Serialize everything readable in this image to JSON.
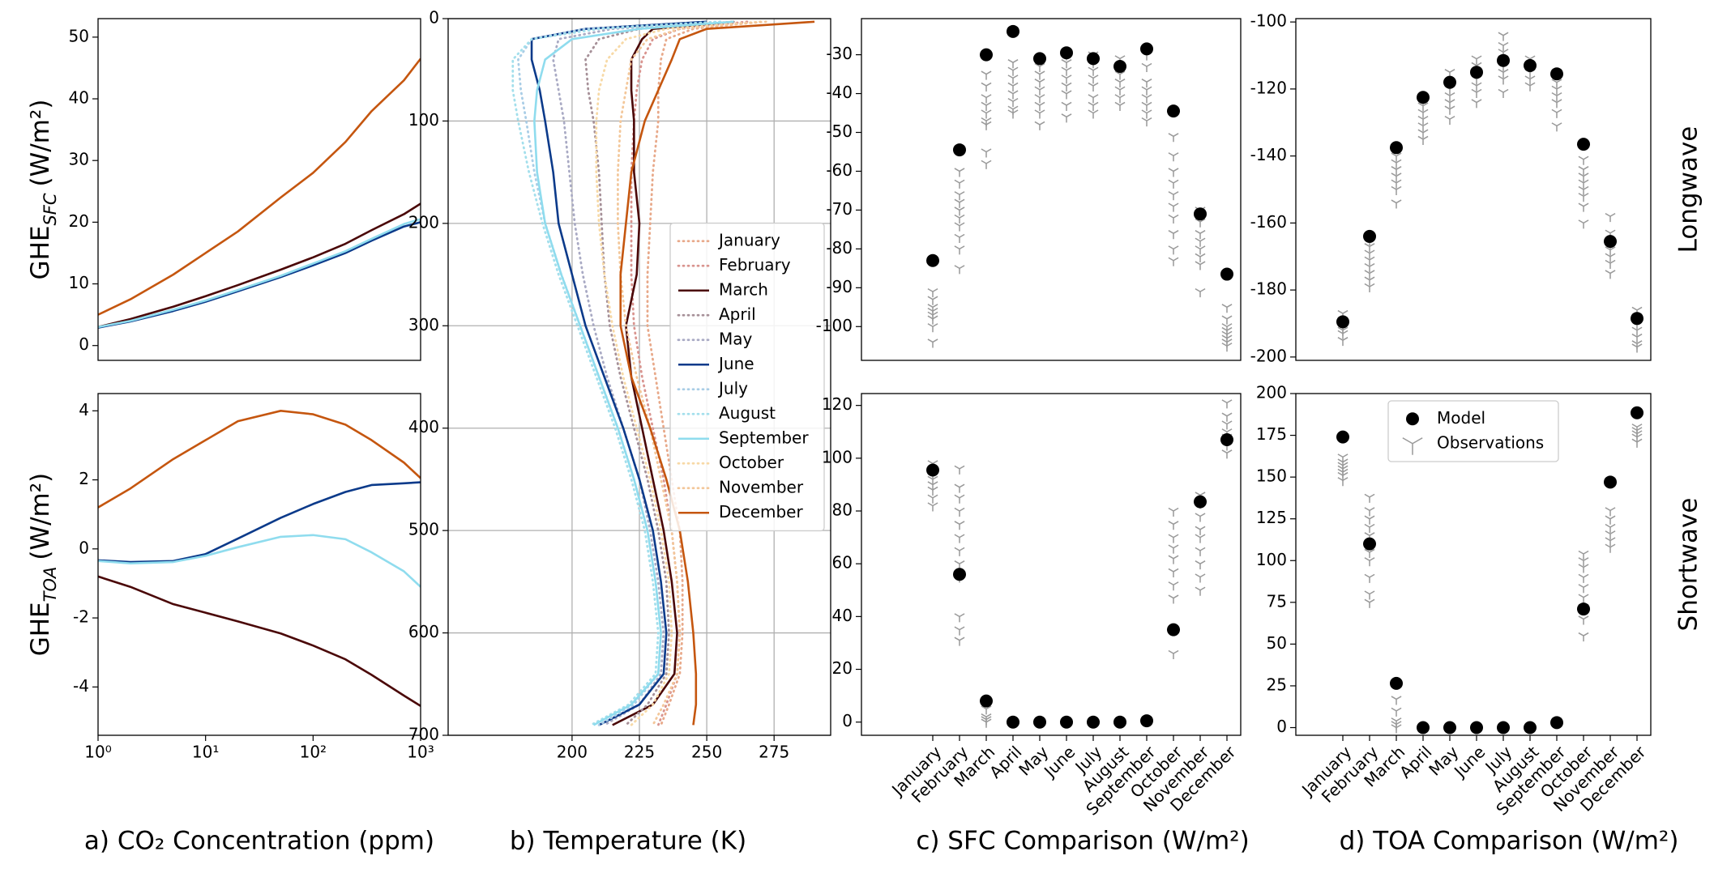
{
  "chart_data": [
    {
      "type": "line",
      "xlim": [
        1,
        1000
      ],
      "xlog": true,
      "ylim": [
        -2.4,
        53
      ],
      "yticks": [
        0,
        10,
        20,
        30,
        40,
        50
      ],
      "ylabel": {
        "text": "GHE",
        "sub": "SFC",
        "unit": "(W/m²)"
      },
      "x": [
        1,
        2,
        5,
        10,
        20,
        50,
        100,
        200,
        350,
        700,
        1000
      ],
      "series": [
        {
          "color": "#c5560f",
          "values": [
            5,
            7.5,
            11.5,
            15,
            18.5,
            24,
            28,
            33,
            38,
            43,
            46.5
          ]
        },
        {
          "color": "#4a0707",
          "values": [
            3,
            4.3,
            6.3,
            8,
            9.8,
            12.3,
            14.3,
            16.5,
            18.7,
            21.3,
            23
          ]
        },
        {
          "color": "#0b3a8a",
          "values": [
            2.9,
            3.9,
            5.6,
            7.1,
            8.8,
            11.1,
            13,
            15,
            17,
            19.3,
            20
          ]
        },
        {
          "color": "#8fdcee",
          "values": [
            3,
            4,
            5.8,
            7.3,
            9,
            11.3,
            13.3,
            15.3,
            17.3,
            19.7,
            20.5
          ]
        }
      ]
    },
    {
      "type": "line",
      "xlim": [
        1,
        1000
      ],
      "xlog": true,
      "ylim": [
        -5.4,
        4.5
      ],
      "yticks": [
        -4,
        -2,
        0,
        2,
        4
      ],
      "xticks": [
        {
          "value": 1,
          "label": "10⁰"
        },
        {
          "value": 10,
          "label": "10¹"
        },
        {
          "value": 100,
          "label": "10²"
        },
        {
          "value": 1000,
          "label": "10³"
        }
      ],
      "xlabel": "a) CO₂ Concentration (ppm)",
      "ylabel": {
        "text": "GHE",
        "sub": "TOA",
        "unit": "(W/m²)"
      },
      "x": [
        1,
        2,
        5,
        10,
        20,
        50,
        100,
        200,
        350,
        700,
        1000
      ],
      "series": [
        {
          "color": "#c5560f",
          "values": [
            1.2,
            1.75,
            2.6,
            3.15,
            3.7,
            4.0,
            3.9,
            3.6,
            3.15,
            2.5,
            2.05
          ]
        },
        {
          "color": "#4a0707",
          "values": [
            -0.8,
            -1.1,
            -1.6,
            -1.85,
            -2.1,
            -2.45,
            -2.8,
            -3.2,
            -3.65,
            -4.25,
            -4.55
          ]
        },
        {
          "color": "#0b3a8a",
          "values": [
            -0.33,
            -0.38,
            -0.35,
            -0.15,
            0.3,
            0.9,
            1.3,
            1.65,
            1.85,
            1.9,
            1.93
          ]
        },
        {
          "color": "#8fdcee",
          "values": [
            -0.35,
            -0.42,
            -0.38,
            -0.2,
            0.05,
            0.35,
            0.4,
            0.28,
            -0.1,
            -0.65,
            -1.1
          ]
        }
      ]
    },
    {
      "type": "line",
      "xlim": [
        154,
        296
      ],
      "ylim": [
        700,
        0
      ],
      "xticks": [
        200,
        225,
        250,
        275
      ],
      "yticks": [
        0,
        100,
        200,
        300,
        400,
        500,
        600,
        700
      ],
      "grid": true,
      "legend": "center right",
      "xlabel": "b) Temperature (K)",
      "y": [
        3,
        10,
        20,
        40,
        70,
        100,
        150,
        200,
        250,
        300,
        350,
        400,
        450,
        500,
        550,
        600,
        640,
        670,
        690
      ],
      "series": [
        {
          "name": "January",
          "color": "#e8a98a",
          "style": "dotted",
          "x": [
            270,
            245,
            235,
            233,
            232,
            232,
            230,
            229,
            228,
            228,
            231,
            234,
            237,
            240,
            241,
            241,
            240,
            236,
            233
          ]
        },
        {
          "name": "February",
          "color": "#d9948f",
          "style": "dotted",
          "x": [
            265,
            240,
            230,
            226,
            224,
            223,
            222,
            222,
            222,
            223,
            226,
            230,
            234,
            237,
            239,
            240,
            239,
            235,
            232
          ]
        },
        {
          "name": "March",
          "color": "#4a0707",
          "style": "solid",
          "x": [
            260,
            230,
            226,
            222,
            222,
            223,
            223,
            225,
            224,
            220,
            222,
            226,
            230,
            234,
            237,
            239,
            238,
            230,
            215
          ]
        },
        {
          "name": "April",
          "color": "#a69098",
          "style": "dotted",
          "x": [
            260,
            225,
            210,
            205,
            206,
            208,
            210,
            211,
            212,
            214,
            218,
            223,
            228,
            232,
            235,
            236,
            235,
            228,
            220
          ]
        },
        {
          "name": "May",
          "color": "#a9aac4",
          "style": "dotted",
          "x": [
            255,
            215,
            195,
            193,
            195,
            197,
            199,
            201,
            204,
            208,
            213,
            219,
            225,
            229,
            232,
            234,
            233,
            225,
            212
          ]
        },
        {
          "name": "June",
          "color": "#0b3a8a",
          "style": "solid",
          "x": [
            250,
            205,
            185,
            185,
            188,
            190,
            193,
            195,
            200,
            205,
            212,
            219,
            225,
            230,
            233,
            235,
            234,
            225,
            210
          ]
        },
        {
          "name": "July",
          "color": "#a9cde6",
          "style": "dotted",
          "x": [
            255,
            205,
            185,
            180,
            181,
            183,
            186,
            190,
            196,
            203,
            210,
            217,
            223,
            228,
            231,
            233,
            232,
            223,
            210
          ]
        },
        {
          "name": "August",
          "color": "#a3dfec",
          "style": "dotted",
          "x": [
            255,
            210,
            185,
            178,
            178,
            180,
            184,
            189,
            195,
            202,
            209,
            216,
            222,
            227,
            230,
            232,
            231,
            221,
            207
          ]
        },
        {
          "name": "September",
          "color": "#8fdcee",
          "style": "solid",
          "x": [
            260,
            225,
            200,
            190,
            187,
            186,
            187,
            190,
            196,
            203,
            210,
            217,
            223,
            228,
            231,
            233,
            232,
            222,
            208
          ]
        },
        {
          "name": "October",
          "color": "#f7d9a6",
          "style": "dotted",
          "x": [
            270,
            235,
            220,
            213,
            210,
            209,
            209,
            210,
            212,
            215,
            219,
            224,
            229,
            233,
            236,
            237,
            236,
            230,
            222
          ]
        },
        {
          "name": "November",
          "color": "#f3c79a",
          "style": "dotted",
          "x": [
            272,
            240,
            228,
            222,
            220,
            218,
            217,
            217,
            218,
            220,
            224,
            229,
            233,
            237,
            239,
            240,
            239,
            234,
            230
          ]
        },
        {
          "name": "December",
          "color": "#c5560f",
          "style": "solid",
          "x": [
            290,
            250,
            240,
            237,
            232,
            227,
            222,
            220,
            218,
            218,
            222,
            229,
            235,
            240,
            243,
            245,
            246,
            246,
            245
          ]
        }
      ]
    },
    {
      "type": "dot",
      "ylim": [
        -108.7,
        -20.7
      ],
      "yticks": [
        -30,
        -40,
        -50,
        -60,
        -70,
        -80,
        -90,
        -100
      ],
      "series": [
        {
          "color": "#000000",
          "marker": "circle",
          "values": [
            -83,
            -54.5,
            -30,
            -24,
            -31,
            -29.5,
            -31,
            -33,
            -28.5,
            -44.5,
            -71,
            -86.5
          ]
        },
        {
          "color": "#999999",
          "marker": "tri_down",
          "values": [
            [
              -91,
              -93,
              -95,
              -96,
              -97,
              -98,
              -100,
              -104
            ],
            [
              -60,
              -63,
              -66,
              -68,
              -70,
              -72,
              -74,
              -77,
              -80,
              -85
            ],
            [
              -35,
              -38,
              -41,
              -43,
              -45,
              -47,
              -48,
              -55,
              -58
            ],
            [
              -32,
              -34,
              -36,
              -38,
              -40,
              -42,
              -44,
              -45
            ],
            [
              -33,
              -35,
              -37,
              -39,
              -41,
              -43,
              -45,
              -48
            ],
            [
              -30,
              -32,
              -34,
              -36,
              -38,
              -40,
              -43,
              -46
            ],
            [
              -30,
              -32,
              -34,
              -36,
              -38,
              -41,
              -43,
              -45
            ],
            [
              -31,
              -33,
              -35,
              -37,
              -39,
              -41,
              -43
            ],
            [
              -30,
              -33,
              -37,
              -39,
              -41,
              -43,
              -45,
              -47
            ],
            [
              -51,
              -56,
              -60,
              -63,
              -66,
              -69,
              -72,
              -76,
              -80,
              -83
            ],
            [
              -70,
              -73,
              -76,
              -78,
              -80,
              -82,
              -84,
              -91
            ],
            [
              -95,
              -98,
              -100,
              -101,
              -102,
              -103,
              -104,
              -105
            ]
          ]
        }
      ]
    },
    {
      "type": "dot",
      "ylim": [
        -201,
        -99
      ],
      "yticks": [
        -100,
        -120,
        -140,
        -160,
        -180,
        -200
      ],
      "side_label": "Longwave",
      "series": [
        {
          "color": "#000000",
          "marker": "circle",
          "values": [
            -189.5,
            -164,
            -137.5,
            -122.5,
            -118,
            -115,
            -111.5,
            -113,
            -115.5,
            -136.5,
            -165.5,
            -188.5
          ]
        },
        {
          "color": "#999999",
          "marker": "tri_down",
          "values": [
            [
              -187,
              -189,
              -190,
              -191,
              -192,
              -193,
              -195
            ],
            [
              -165,
              -167,
              -169,
              -171,
              -173,
              -175,
              -177,
              -179
            ],
            [
              -140,
              -142,
              -144,
              -146,
              -148,
              -150,
              -154
            ],
            [
              -123,
              -125,
              -127,
              -129,
              -131,
              -133,
              -135
            ],
            [
              -115,
              -118,
              -120,
              -122,
              -124,
              -126,
              -129
            ],
            [
              -111,
              -113,
              -115,
              -117,
              -119,
              -121,
              -124
            ],
            [
              -104,
              -107,
              -109,
              -111,
              -113,
              -115,
              -117,
              -121
            ],
            [
              -111,
              -113,
              -115,
              -117,
              -119
            ],
            [
              -115,
              -118,
              -120,
              -122,
              -124,
              -127,
              -131
            ],
            [
              -141,
              -144,
              -146,
              -148,
              -150,
              -152,
              -155,
              -160
            ],
            [
              -158,
              -163,
              -166,
              -168,
              -170,
              -172,
              -175
            ],
            [
              -186,
              -188,
              -190,
              -192,
              -194,
              -196,
              -197
            ]
          ]
        }
      ]
    },
    {
      "type": "dot",
      "ylim": [
        -5,
        124.5
      ],
      "yticks": [
        0,
        20,
        40,
        60,
        80,
        100,
        120
      ],
      "xlabel": "c) SFC Comparison (W/m²)",
      "categories": [
        "January",
        "February",
        "March",
        "April",
        "May",
        "June",
        "July",
        "August",
        "September",
        "October",
        "November",
        "December"
      ],
      "series": [
        {
          "color": "#000000",
          "marker": "circle",
          "values": [
            95.5,
            56,
            8,
            0,
            0,
            0,
            0,
            0,
            0.5,
            35,
            83.5,
            107
          ]
        },
        {
          "color": "#999999",
          "marker": "tri_down",
          "values": [
            [
              82,
              85,
              88,
              90,
              92,
              94,
              96,
              98
            ],
            [
              31,
              35,
              40,
              55,
              60,
              65,
              70,
              75,
              80,
              85,
              89,
              96
            ],
            [
              0,
              1,
              2,
              5
            ],
            [],
            [],
            [],
            [],
            [],
            [],
            [
              26,
              47,
              52,
              57,
              62,
              66,
              70,
              75,
              80
            ],
            [
              50,
              55,
              60,
              65,
              70,
              73,
              78,
              83,
              86
            ],
            [
              102,
              105,
              108,
              110,
              113,
              116,
              121
            ]
          ]
        }
      ]
    },
    {
      "type": "dot",
      "ylim": [
        -4.6,
        200
      ],
      "yticks": [
        0,
        25,
        50,
        75,
        100,
        125,
        150,
        175,
        200
      ],
      "xlabel": "d) TOA Comparison (W/m²)",
      "side_label": "Shortwave",
      "legend": "upper center",
      "categories": [
        "January",
        "February",
        "March",
        "April",
        "May",
        "June",
        "July",
        "August",
        "September",
        "October",
        "November",
        "December"
      ],
      "series": [
        {
          "name": "Model",
          "color": "#000000",
          "marker": "circle",
          "values": [
            174,
            110,
            26.5,
            0,
            0,
            0,
            0,
            0,
            3,
            71,
            147,
            188.5
          ]
        },
        {
          "name": "Observations",
          "color": "#999999",
          "marker": "tri_down",
          "values": [
            [
              148,
              151,
              153,
              155,
              157,
              159,
              162
            ],
            [
              75,
              80,
              90,
              100,
              105,
              110,
              115,
              120,
              125,
              130,
              138
            ],
            [
              0,
              2,
              4,
              10,
              17
            ],
            [],
            [],
            [],
            [],
            [],
            [],
            [
              55,
              65,
              72,
              78,
              84,
              90,
              96,
              100,
              104
            ],
            [
              108,
              112,
              116,
              120,
              125,
              130
            ],
            [
              171,
              174,
              176,
              178,
              180
            ]
          ]
        }
      ]
    }
  ]
}
